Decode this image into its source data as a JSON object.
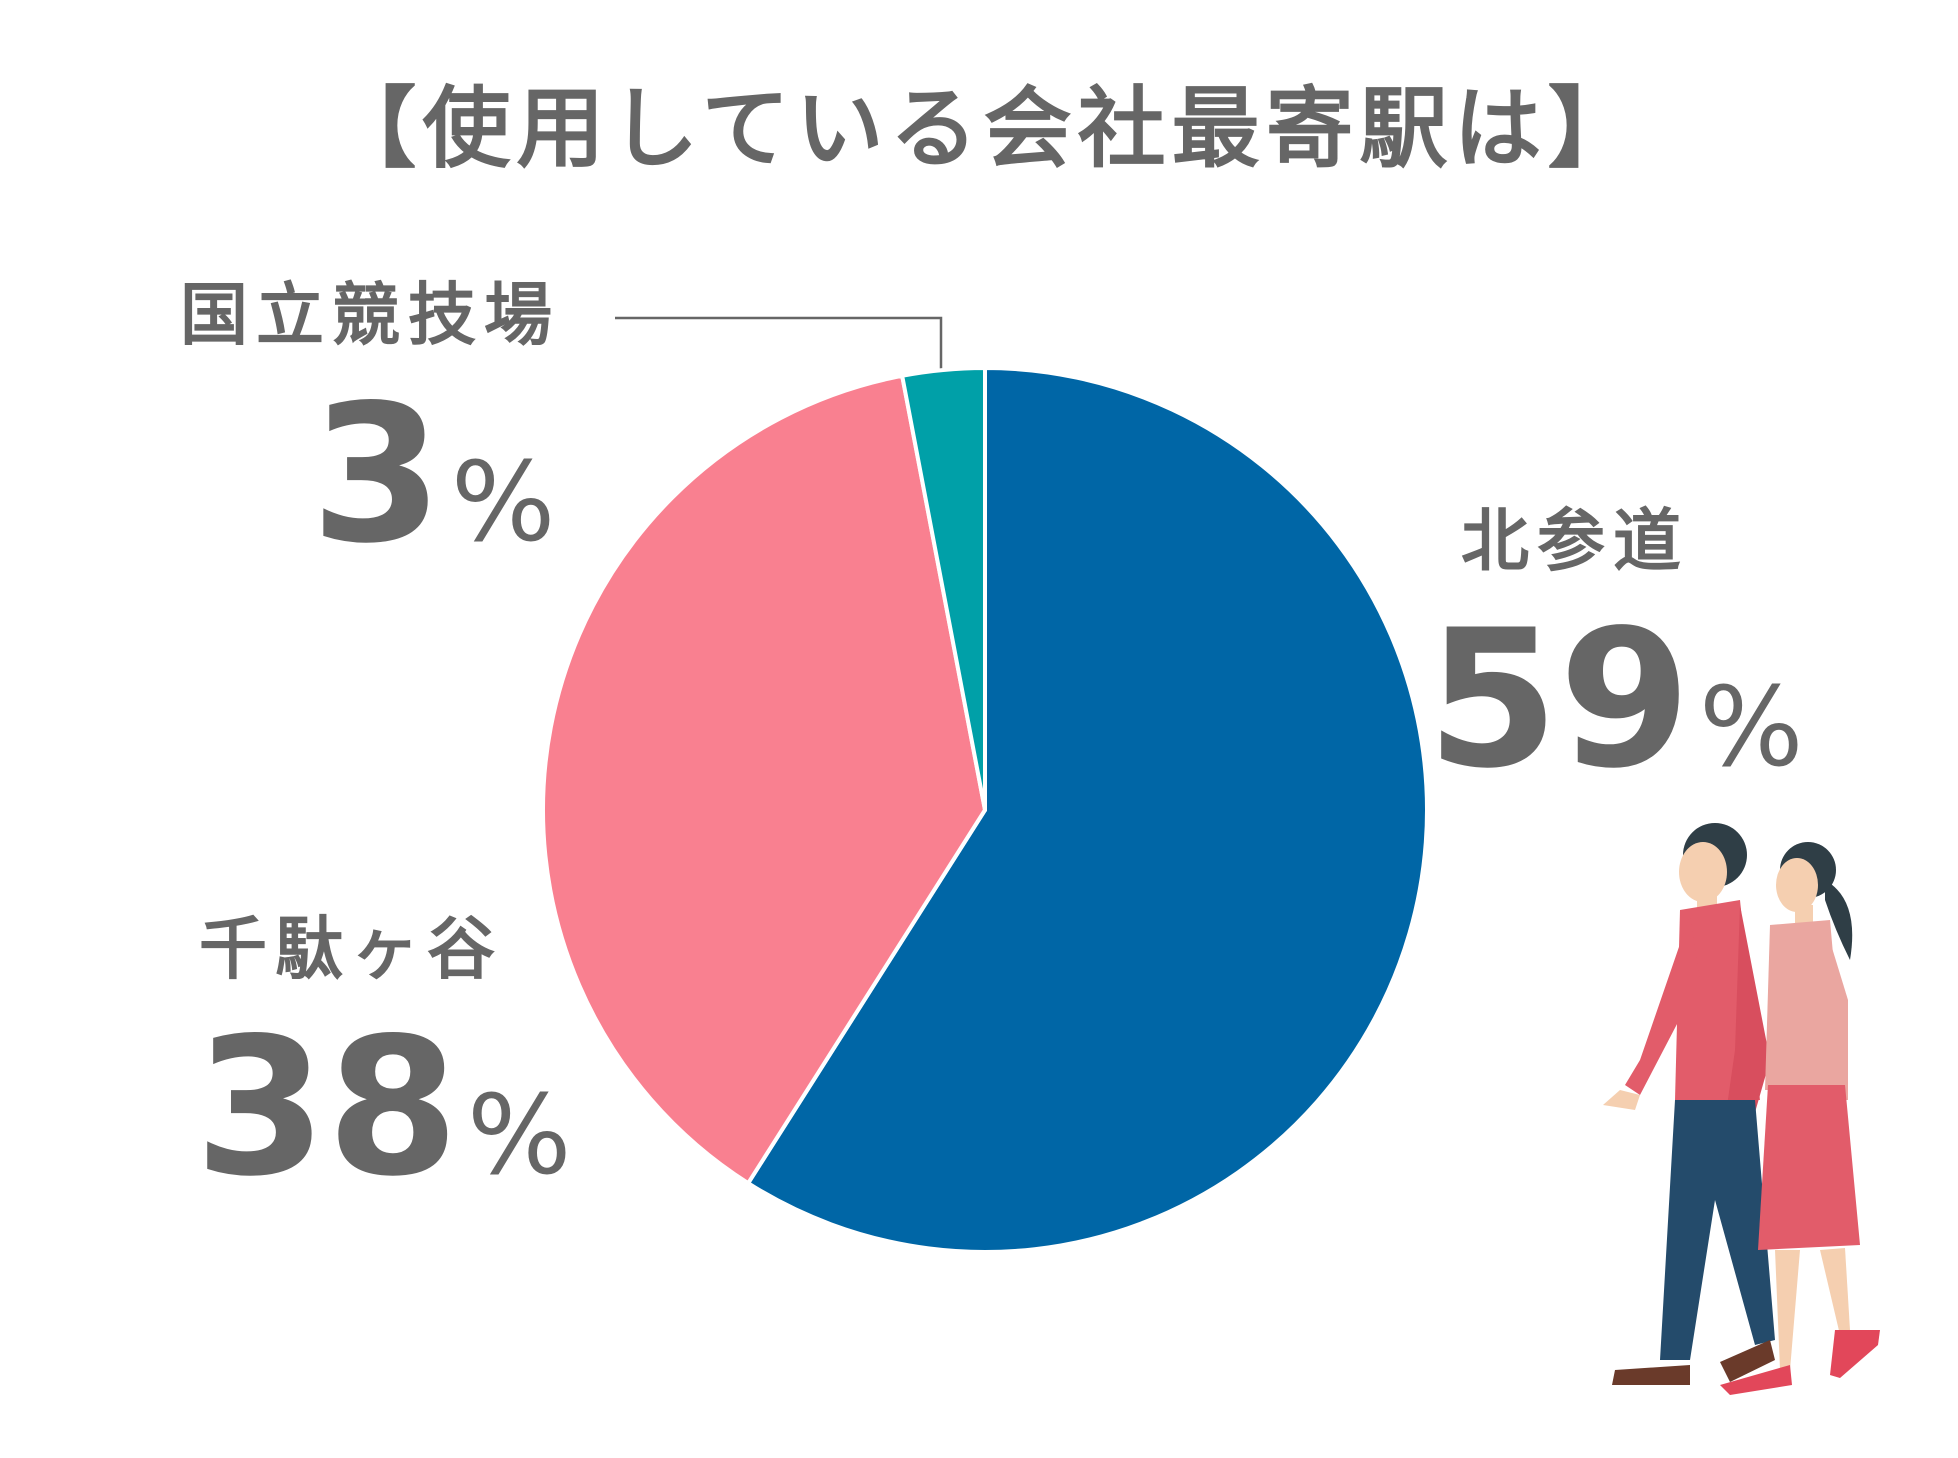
{
  "chart_data": {
    "type": "pie",
    "title": "【使用している会社最寄駅は】",
    "categories": [
      "北参道",
      "千駄ヶ谷",
      "国立競技場"
    ],
    "values": [
      59,
      38,
      3
    ],
    "value_labels": [
      "59%",
      "38%",
      "3%"
    ],
    "colors": [
      "#0066a6",
      "#f98090",
      "#00a0a8"
    ]
  }
}
